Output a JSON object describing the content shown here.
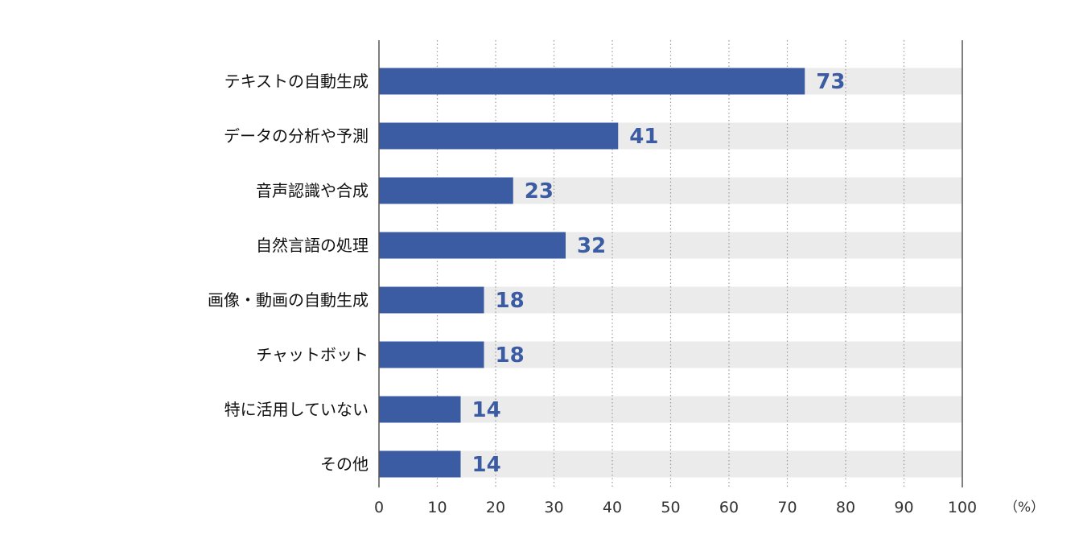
{
  "chart_data": {
    "type": "bar",
    "orientation": "horizontal",
    "title": "",
    "xlabel": "",
    "ylabel": "",
    "unit_label": "（%）",
    "categories": [
      "テキストの自動生成",
      "データの分析や予測",
      "音声認識や合成",
      "自然言語の処理",
      "画像・動画の自動生成",
      "チャットボット",
      "特に活用していない",
      "その他"
    ],
    "values": [
      73,
      41,
      23,
      32,
      18,
      18,
      14,
      14
    ],
    "xlim": [
      0,
      100
    ],
    "xticks": [
      "0",
      "10",
      "20",
      "30",
      "40",
      "50",
      "60",
      "70",
      "80",
      "90",
      "100"
    ],
    "grid": "vertical-dotted",
    "legend": "none",
    "colors": {
      "bar": "#3b5ca3",
      "track": "#ebebeb",
      "value_text": "#3b5ca3",
      "grid": "#9a9a9a",
      "axis": "#555555"
    }
  }
}
